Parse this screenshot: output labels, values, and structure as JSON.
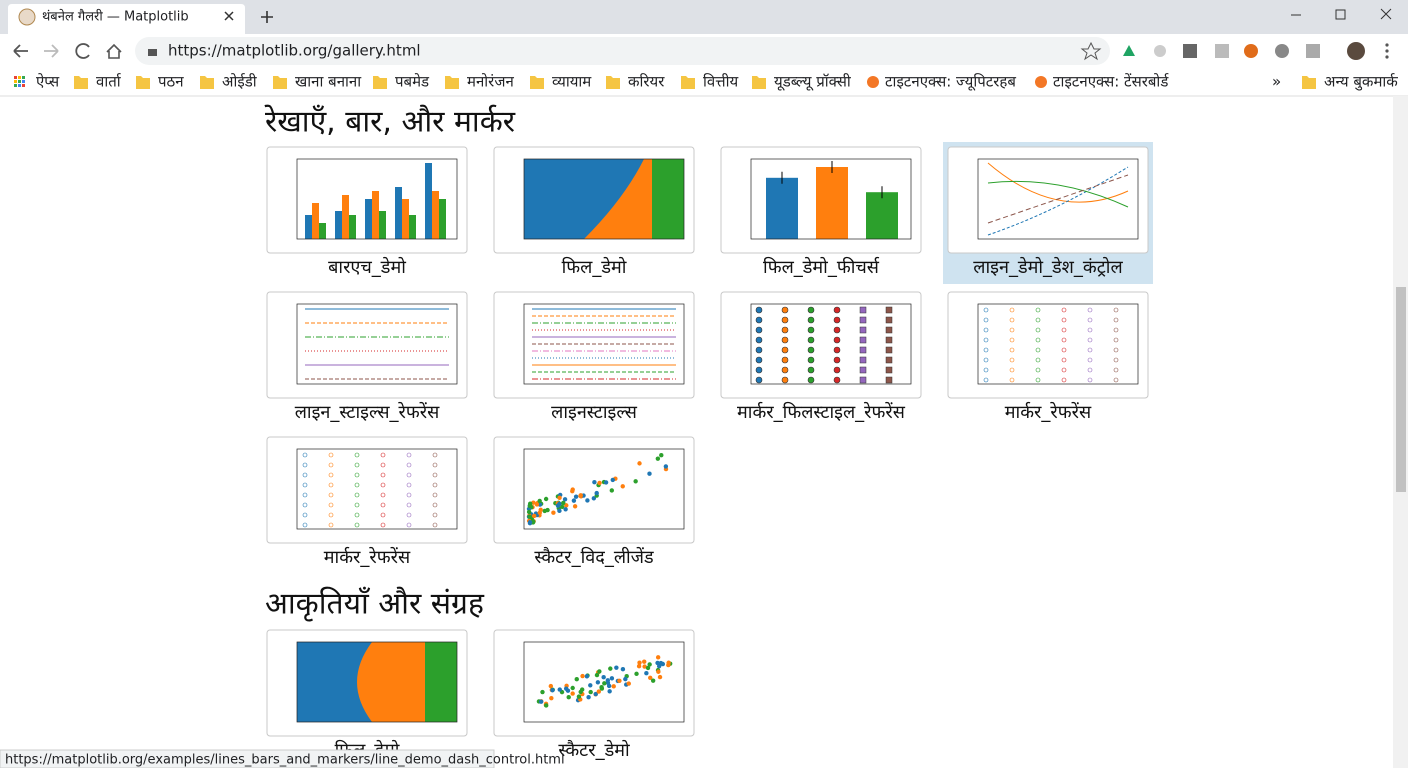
{
  "tab": {
    "title": "थंबनेल गैलरी — Matplotlib"
  },
  "address": {
    "url": "https://matplotlib.org/gallery.html"
  },
  "bookmarks": [
    "ऐप्स",
    "वार्ता",
    "पठन",
    "ओईडी",
    "खाना बनाना",
    "पबमेड",
    "मनोरंजन",
    "व्यायाम",
    "करियर",
    "वित्तीय",
    "यूडब्ल्यू प्रॉक्सी",
    "टाइटनएक्स: ज्यूपिटरहब",
    "टाइटनएक्स: टेंसरबोर्ड",
    "»",
    "अन्य बुकमार्क"
  ],
  "sections": [
    {
      "heading": "रेखाएँ, बार, और मार्कर",
      "items": [
        "बारएच_डेमो",
        "फिल_डेमो",
        "फिल_डेमो_फीचर्स",
        "लाइन_डेमो_डेश_कंट्रोल",
        "लाइन_स्टाइल्स_रेफरेंस",
        "लाइनस्टाइल्स",
        "मार्कर_फिलस्टाइल_रेफरेंस",
        "मार्कर_रेफरेंस",
        "मार्कर_रेफरेंस",
        "स्कैटर_विद_लीजेंड"
      ]
    },
    {
      "heading": "आकृतियाँ और संग्रह",
      "items": [
        "फिल_डेमो",
        "स्कैटर_डेमो"
      ]
    }
  ],
  "status": "https://matplotlib.org/examples/lines_bars_and_markers/line_demo_dash_control.html"
}
